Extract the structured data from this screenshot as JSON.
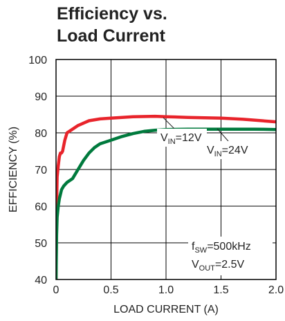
{
  "chart_data": {
    "type": "line",
    "title_line1": "Efficiency vs.",
    "title_line2": "Load Current",
    "xlabel": "LOAD CURRENT (A)",
    "ylabel": "EFFICIENCY (%)",
    "xlim": [
      0,
      2.0
    ],
    "ylim": [
      40,
      100
    ],
    "xticks": [
      0,
      0.5,
      1.0,
      1.5,
      2.0
    ],
    "xtick_labels": [
      "0",
      "0.5",
      "1.0",
      "1.5",
      "2.0"
    ],
    "yticks": [
      40,
      50,
      60,
      70,
      80,
      90,
      100
    ],
    "ytick_labels": [
      "40",
      "50",
      "60",
      "70",
      "80",
      "90",
      "100"
    ],
    "grid": true,
    "series": [
      {
        "color": "#e8242b",
        "x": [
          0.0,
          0.005,
          0.01,
          0.02,
          0.03,
          0.04,
          0.05,
          0.06,
          0.08,
          0.1,
          0.15,
          0.2,
          0.3,
          0.4,
          0.5,
          0.7,
          0.9,
          1.0,
          1.2,
          1.5,
          1.7,
          2.0
        ],
        "y": [
          40,
          60,
          68,
          71,
          73.5,
          74.5,
          74.5,
          75,
          78,
          80,
          81,
          82,
          83.3,
          83.8,
          84.0,
          84.4,
          84.5,
          84.4,
          84.2,
          84.0,
          83.7,
          83.0
        ]
      },
      {
        "color": "#007a3d",
        "x": [
          0.0,
          0.005,
          0.01,
          0.02,
          0.03,
          0.05,
          0.07,
          0.1,
          0.15,
          0.2,
          0.25,
          0.3,
          0.35,
          0.4,
          0.5,
          0.6,
          0.7,
          0.8,
          0.9,
          1.0,
          1.2,
          1.5,
          1.8,
          2.0
        ],
        "y": [
          40,
          52,
          57,
          60,
          62,
          64.5,
          65.5,
          66.5,
          67.5,
          70,
          72.5,
          74.5,
          76,
          77,
          78,
          79,
          79.8,
          80.4,
          80.7,
          80.9,
          81.0,
          81.0,
          81.0,
          80.9
        ]
      }
    ],
    "annotations": [
      {
        "main": "V",
        "sub": "IN",
        "rest": "=12V"
      },
      {
        "main": "V",
        "sub": "IN",
        "rest": "=24V"
      },
      {
        "main": "f",
        "sub": "SW",
        "rest": "=500kHz"
      },
      {
        "main": "V",
        "sub": "OUT",
        "rest": "=2.5V"
      }
    ]
  },
  "colors": {
    "grid": "#000000",
    "background": "#ffffff"
  }
}
